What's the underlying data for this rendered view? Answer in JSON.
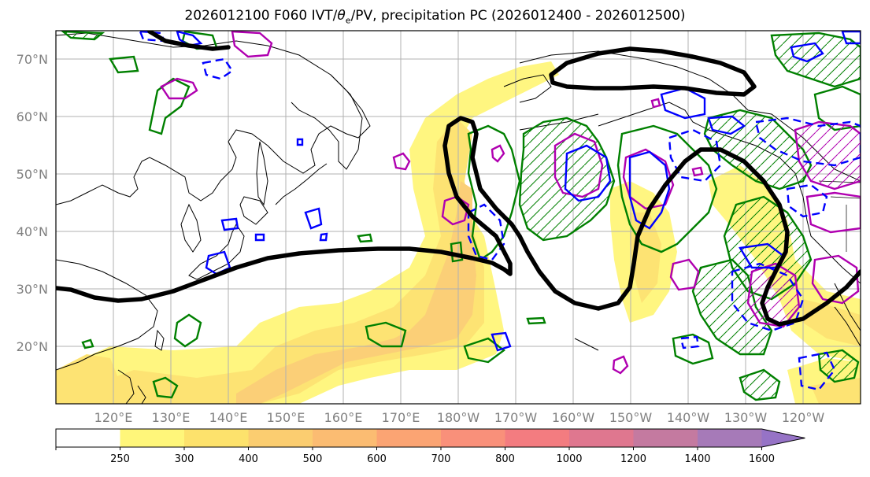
{
  "chart_data": {
    "type": "contour-map",
    "title_prefix": "2026012100 F060 IVT/",
    "title_theta": "θ",
    "title_sub": "e",
    "title_suffix": "/PV, precipitation PC (2026012400 - 2026012500)",
    "longitude_ticks": [
      "120°E",
      "130°E",
      "140°E",
      "150°E",
      "160°E",
      "170°E",
      "180°W",
      "170°W",
      "160°W",
      "150°W",
      "140°W",
      "130°W",
      "120°W"
    ],
    "latitude_ticks": [
      "20°N",
      "30°N",
      "40°N",
      "50°N",
      "60°N",
      "70°N"
    ],
    "lon_range": [
      110,
      250
    ],
    "lat_range": [
      10,
      75
    ],
    "colorbar": {
      "levels": [
        250,
        300,
        400,
        500,
        600,
        700,
        800,
        1000,
        1200,
        1400,
        1600
      ],
      "extend": "max",
      "colors": [
        "#ffffff",
        "#fff67a",
        "#fde26c",
        "#fbcd70",
        "#fbbc72",
        "#fba473",
        "#f9907a",
        "#f37c80",
        "#df778f",
        "#c47aa0",
        "#a67ab8",
        "#9673c6"
      ]
    },
    "line_colors": {
      "pv": "#000000",
      "theta_e_pos": "#0000ff",
      "precip": "#008000",
      "magenta": "#b000b0"
    }
  }
}
